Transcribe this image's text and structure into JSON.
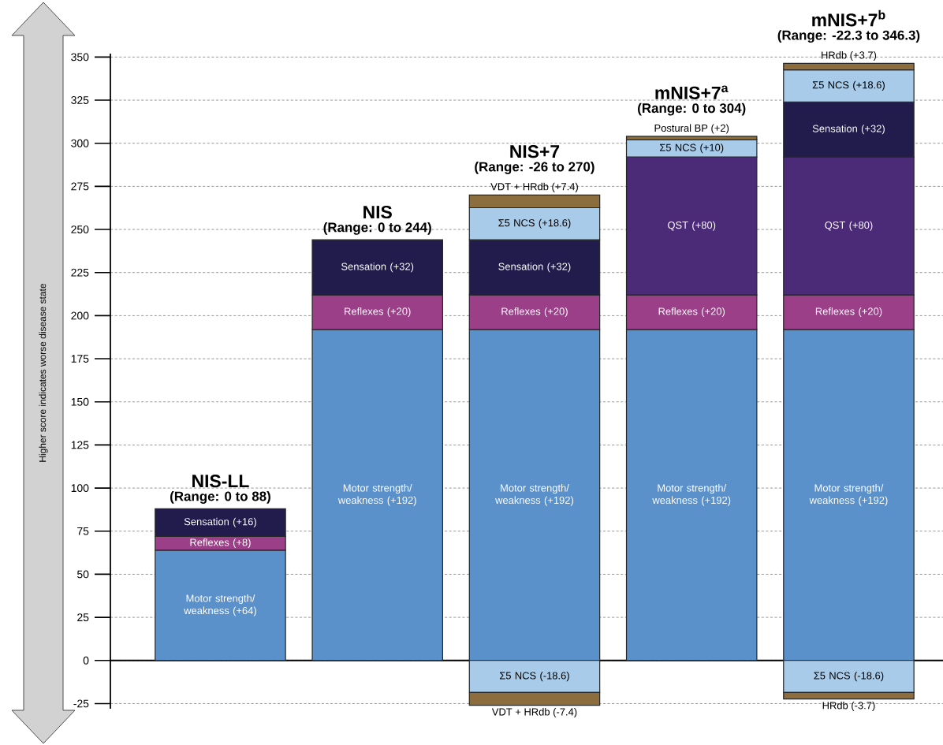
{
  "chart_data": {
    "type": "bar",
    "stacked": true,
    "ylabel": "Higher score indicates worse disease state",
    "categories": [
      "NIS-LL",
      "NIS",
      "NIS+7",
      "mNIS+7$^{a}$",
      "mNIS+7$^{b}$"
    ],
    "series": [
      {
        "color": "#5b91cb",
        "values": [
          64,
          192,
          192,
          192,
          192
        ],
        "value_labels": [
          "Motor strength/ weakness (+64)",
          "Motor strength/ weakness (+192)",
          "Motor strength/ weakness (+192)",
          "Motor strength/ weakness (+192)",
          "Motor strength/ weakness (+192)"
        ]
      },
      {
        "color": "#9b3f88",
        "values": [
          8,
          20,
          20,
          20,
          20
        ],
        "value_labels": [
          "Reflexes (+8)",
          "Reflexes (+20)",
          "Reflexes (+20)",
          "Reflexes (+20)",
          "Reflexes (+20)"
        ]
      },
      {
        "color": "#4b2a77",
        "values": [
          null,
          null,
          null,
          80,
          80
        ],
        "value_labels": [
          null,
          null,
          null,
          "QST (+80)",
          "QST (+80)"
        ]
      },
      {
        "color": "#211c4c",
        "values": [
          16,
          32,
          32,
          null,
          32
        ],
        "value_labels": [
          "Sensation (+16)",
          "Sensation (+32)",
          "Sensation (+32)",
          null,
          "Sensation (+32)"
        ]
      },
      {
        "color": "#a8cbea",
        "values": [
          null,
          null,
          18.6,
          10,
          18.6
        ],
        "value_labels": [
          null,
          null,
          "Σ5 NCS (+18.6)",
          "Σ5 NCS (+10)",
          "Σ5 NCS (+18.6)"
        ]
      },
      {
        "color": "#8b6d3e",
        "values": [
          null,
          null,
          7.4,
          2,
          3.7
        ],
        "value_labels": [
          null,
          null,
          "VDT + HRdb (+7.4)",
          "Postural BP (+2)",
          "HRdb (+3.7)"
        ]
      },
      {
        "color": "#a8cbea",
        "values": [
          null,
          null,
          -18.6,
          null,
          -18.6
        ],
        "value_labels": [
          null,
          null,
          "Σ5 NCS (-18.6)",
          null,
          "Σ5 NCS (-18.6)"
        ]
      },
      {
        "color": "#8b6d3e",
        "values": [
          null,
          null,
          -7.4,
          null,
          -3.7
        ],
        "value_labels": [
          null,
          null,
          "VDT + HRdb (-7.4)",
          null,
          "HRdb (-3.7)"
        ]
      }
    ],
    "ylim": [
      -28,
      352
    ],
    "yticks": [
      -25,
      0,
      25,
      50,
      75,
      100,
      125,
      150,
      175,
      200,
      225,
      250,
      275,
      300,
      325,
      350
    ],
    "grid": "y",
    "annotations": [
      {
        "text": "(Range: 0 to 88)",
        "x": "NIS-LL",
        "y": 88
      },
      {
        "text": "(Range: 0 to 244)",
        "x": "NIS",
        "y": 244
      },
      {
        "text": "(Range: -26 to 270)",
        "x": "NIS+7",
        "y": 270
      },
      {
        "text": "(Range: 0 to 304)",
        "x": "mNIS+7$^{a}$",
        "y": 304
      },
      {
        "text": "(Range: -22.3 to 346.3)",
        "x": "mNIS+7$^{b}$",
        "y": 346.3
      }
    ]
  }
}
